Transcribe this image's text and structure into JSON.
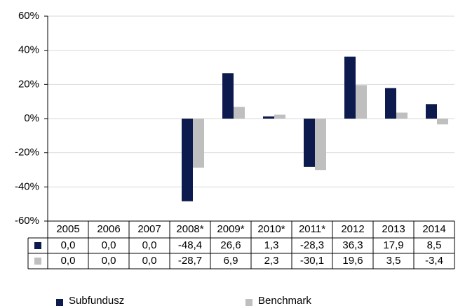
{
  "chart_data": {
    "type": "bar",
    "categories": [
      "2005",
      "2006",
      "2007",
      "2008*",
      "2009*",
      "2010*",
      "2011*",
      "2012",
      "2013",
      "2014"
    ],
    "series": [
      {
        "name": "Subfundusz",
        "color": "#0d1a4d",
        "values": [
          0.0,
          0.0,
          0.0,
          -48.4,
          26.6,
          1.3,
          -28.3,
          36.3,
          17.9,
          8.5
        ],
        "value_labels": [
          "0,0",
          "0,0",
          "0,0",
          "-48,4",
          "26,6",
          "1,3",
          "-28,3",
          "36,3",
          "17,9",
          "8,5"
        ]
      },
      {
        "name": "Benchmark",
        "color": "#bfbfbf",
        "values": [
          0.0,
          0.0,
          0.0,
          -28.7,
          6.9,
          2.3,
          -30.1,
          19.6,
          3.5,
          -3.4
        ],
        "value_labels": [
          "0,0",
          "0,0",
          "0,0",
          "-28,7",
          "6,9",
          "2,3",
          "-30,1",
          "19,6",
          "3,5",
          "-3,4"
        ]
      }
    ],
    "ylim": [
      -60,
      60
    ],
    "yticks": [
      {
        "value": -60,
        "label": "-60%"
      },
      {
        "value": -40,
        "label": "-40%"
      },
      {
        "value": -20,
        "label": "-20%"
      },
      {
        "value": 0,
        "label": "0%"
      },
      {
        "value": 20,
        "label": "20%"
      },
      {
        "value": 40,
        "label": "40%"
      },
      {
        "value": 60,
        "label": "60%"
      }
    ],
    "grid": true
  }
}
